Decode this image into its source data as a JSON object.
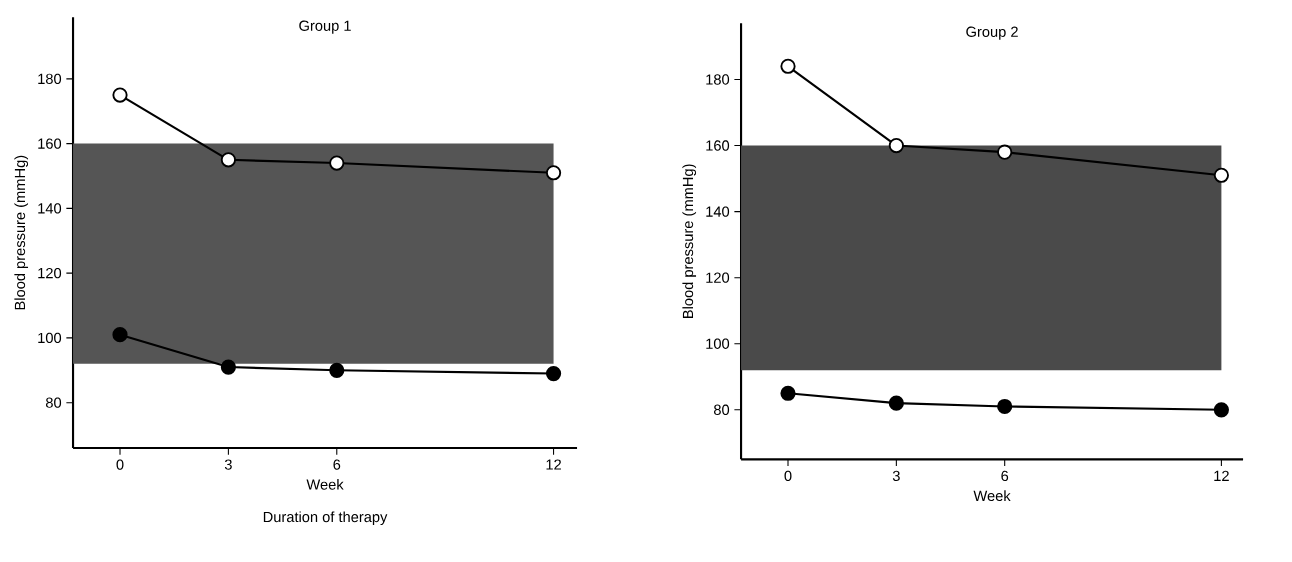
{
  "chart_data": [
    {
      "type": "line",
      "title": "Group 1",
      "xlabel": "Week",
      "ylabel": "Blood pressure (mmHg)",
      "annotations": [
        "Duration of therapy"
      ],
      "x": [
        0,
        3,
        6,
        12
      ],
      "xlim": [
        -1.3,
        12.65
      ],
      "ylim": [
        66,
        199
      ],
      "xticks": [
        0,
        3,
        6,
        12
      ],
      "yticks": [
        80,
        100,
        120,
        140,
        160,
        180
      ],
      "series": [
        {
          "color": "#ffffff",
          "values": [
            175,
            155,
            154,
            151
          ]
        },
        {
          "color": "#000000",
          "values": [
            101,
            91,
            90,
            89
          ]
        }
      ],
      "bands": [
        {
          "axis": "y",
          "from": 92,
          "to": 160,
          "color": "#555555"
        }
      ],
      "marker": "circle",
      "line_style": "solid",
      "grid": false
    },
    {
      "type": "line",
      "title": "Group 2",
      "xlabel": "Week",
      "ylabel": "Blood pressure (mmHg)",
      "x": [
        0,
        3,
        6,
        12
      ],
      "xlim": [
        -1.3,
        12.6
      ],
      "ylim": [
        65,
        197
      ],
      "xticks": [
        0,
        3,
        6,
        12
      ],
      "yticks": [
        80,
        100,
        120,
        140,
        160,
        180
      ],
      "series": [
        {
          "color": "#ffffff",
          "values": [
            184,
            160,
            158,
            151
          ]
        },
        {
          "color": "#000000",
          "values": [
            85,
            82,
            81,
            80
          ]
        }
      ],
      "bands": [
        {
          "axis": "y",
          "from": 92,
          "to": 160,
          "color": "#4a4a4a"
        }
      ],
      "marker": "circle",
      "line_style": "solid",
      "grid": false
    }
  ]
}
